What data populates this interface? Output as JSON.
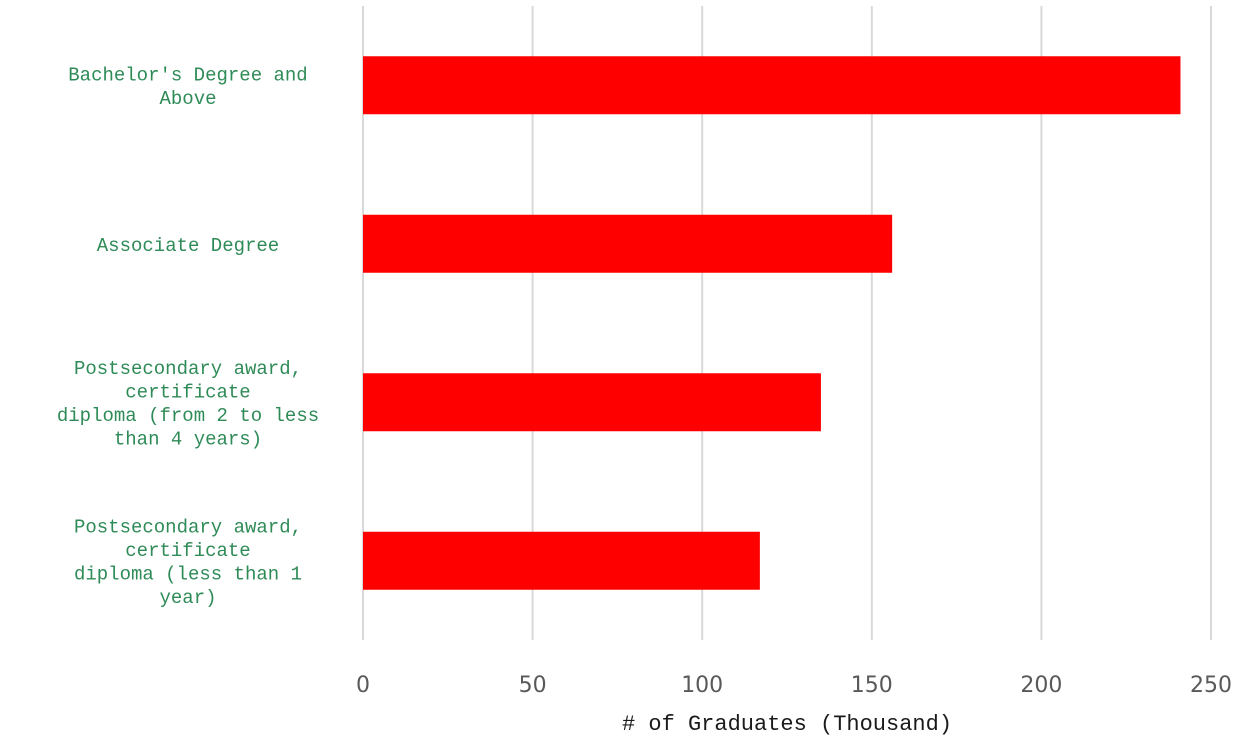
{
  "chart_data": {
    "type": "bar",
    "orientation": "horizontal",
    "categories": [
      [
        "Bachelor's Degree and",
        "Above"
      ],
      [
        "Associate Degree"
      ],
      [
        "Postsecondary award,",
        "certificate",
        "diploma (from 2 to less",
        "than 4 years)"
      ],
      [
        "Postsecondary award,",
        "certificate",
        "diploma (less than 1",
        "year)"
      ]
    ],
    "values": [
      241,
      156,
      135,
      117
    ],
    "xlabel": "# of Graduates (Thousand)",
    "ylabel": "",
    "xlim": [
      0,
      250
    ],
    "xticks": [
      "0",
      "50",
      "100",
      "150",
      "200",
      "250"
    ],
    "grid": "vertical",
    "legend": "none",
    "colors": {
      "bar": "#ff0000",
      "category_label": "#2e8b57",
      "tick_label": "#595959",
      "gridline": "#d9d9d9"
    }
  }
}
